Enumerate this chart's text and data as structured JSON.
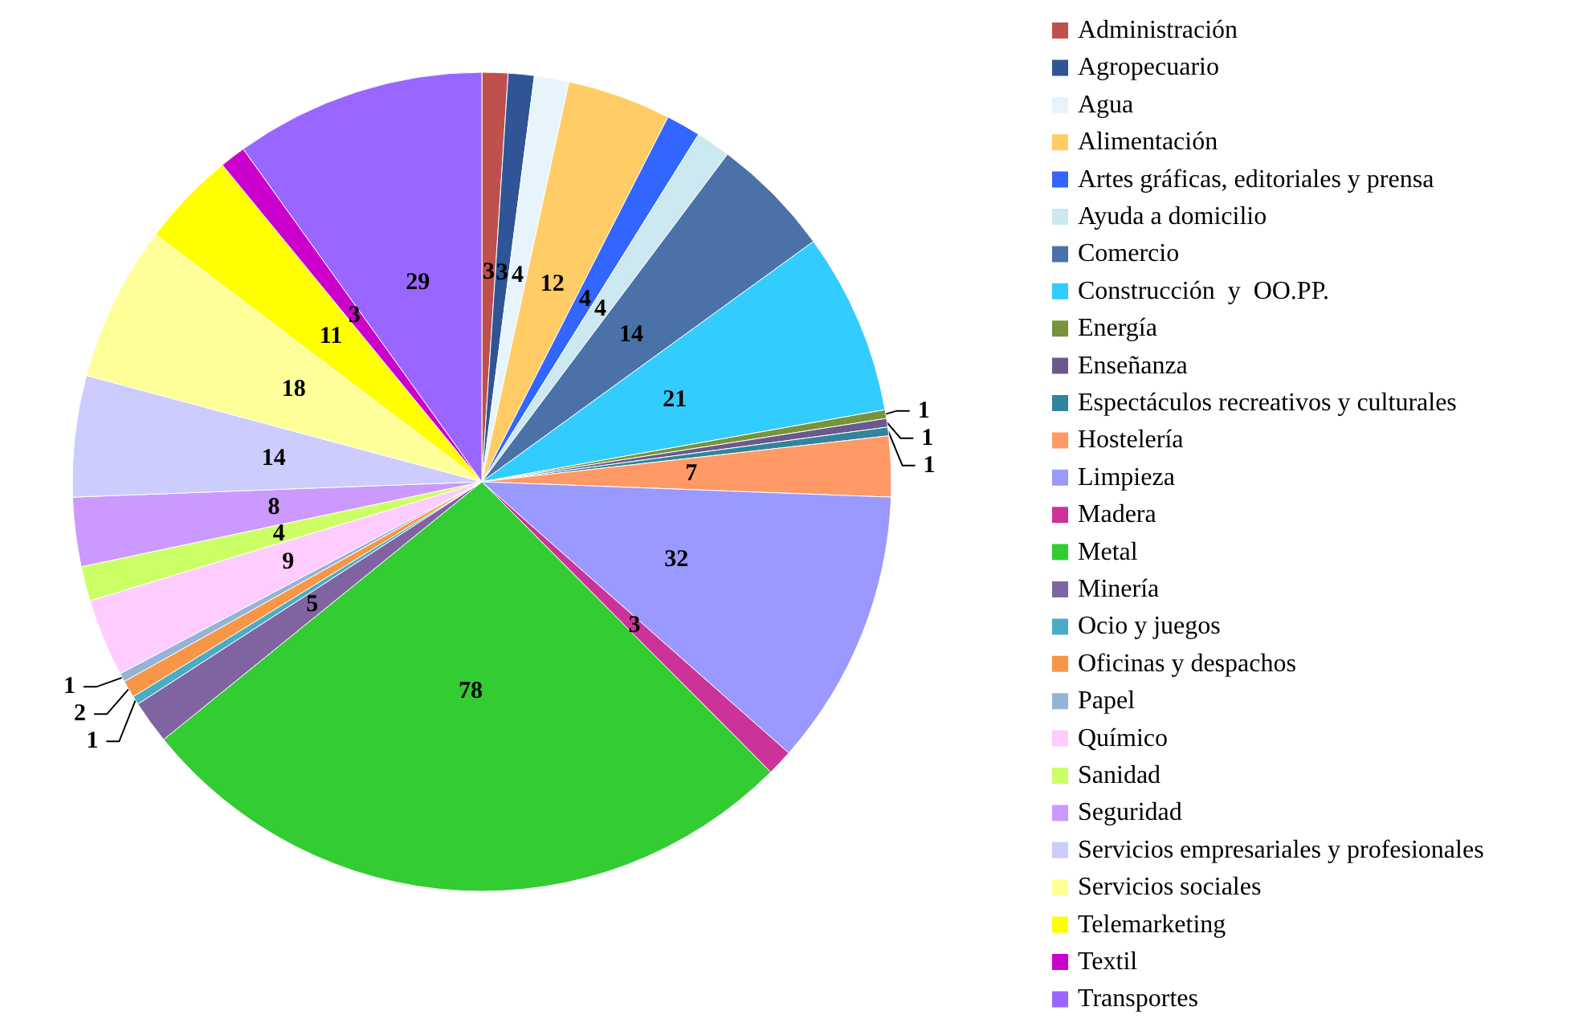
{
  "chart_data": {
    "type": "pie",
    "legend": "right",
    "data_labels": true,
    "categories": [
      "Administración",
      "Agropecuario",
      "Agua",
      "Alimentación",
      "Artes gráficas, editoriales y prensa",
      "Ayuda a domicilio",
      "Comercio",
      "Construcción  y  OO.PP.",
      "Energía",
      "Enseñanza",
      "Espectáculos recreativos y culturales",
      "Hostelería",
      "Limpieza",
      "Madera",
      "Metal",
      "Minería",
      "Ocio y juegos",
      "Oficinas y despachos",
      "Papel",
      "Químico",
      "Sanidad",
      "Seguridad",
      "Servicios empresariales y profesionales",
      "Servicios sociales",
      "Telemarketing",
      "Textil",
      "Transportes"
    ],
    "values": [
      3,
      3,
      4,
      12,
      4,
      4,
      14,
      21,
      1,
      1,
      1,
      7,
      32,
      3,
      78,
      5,
      1,
      2,
      1,
      9,
      4,
      8,
      14,
      18,
      11,
      3,
      29
    ],
    "colors": [
      "#c0504d",
      "#2f5597",
      "#e8f4fb",
      "#ffcc66",
      "#3366ff",
      "#cce8f0",
      "#4a72a8",
      "#33ccff",
      "#77933c",
      "#6a5a8c",
      "#31849b",
      "#ff9966",
      "#9999ff",
      "#cc3399",
      "#33cc33",
      "#8064a2",
      "#4bacc6",
      "#f79646",
      "#95b3d7",
      "#ffccff",
      "#ccff66",
      "#cc99ff",
      "#ccccff",
      "#ffff99",
      "#ffff00",
      "#cc00cc",
      "#9966ff"
    ]
  }
}
